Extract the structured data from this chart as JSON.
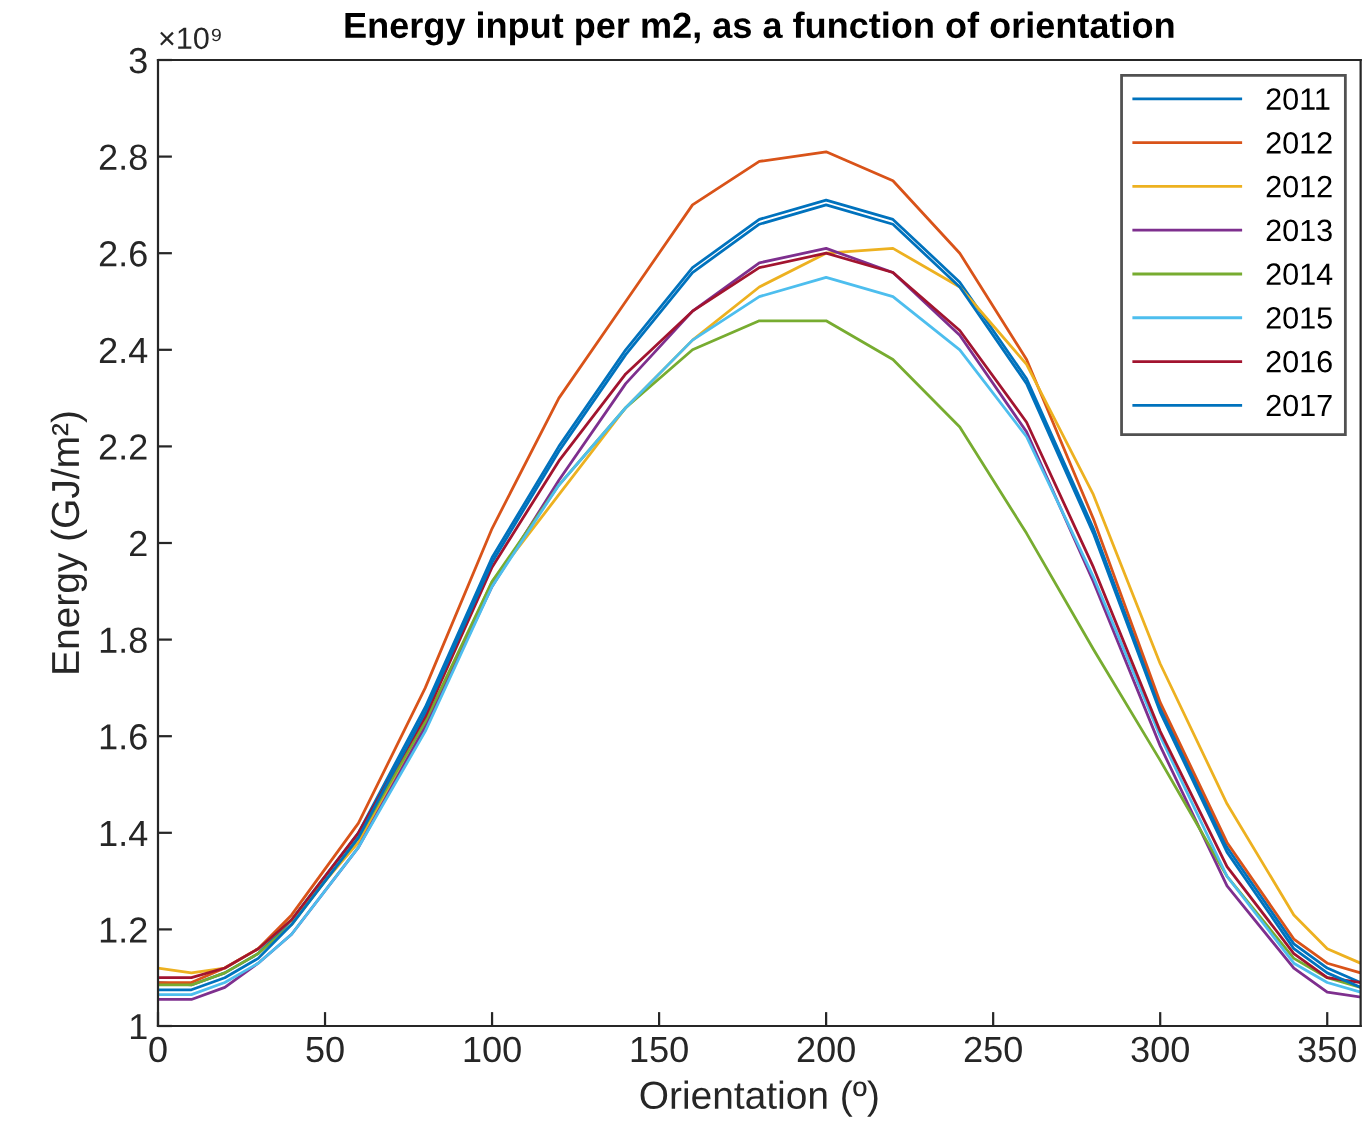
{
  "chart_data": {
    "type": "line",
    "title": "Energy input per m2, as a function of orientation",
    "xlabel": "Orientation (º)",
    "ylabel": "Energy (GJ/m²)",
    "annotations": [
      "×10⁹"
    ],
    "x": [
      0,
      10,
      20,
      30,
      40,
      60,
      80,
      100,
      120,
      140,
      160,
      180,
      200,
      220,
      240,
      260,
      280,
      300,
      320,
      340,
      350,
      360
    ],
    "xlim": [
      0,
      360
    ],
    "xticks": [
      0,
      50,
      100,
      150,
      200,
      250,
      300,
      350
    ],
    "ylim": [
      1,
      3
    ],
    "yticks": [
      1,
      1.2,
      1.4,
      1.6,
      1.8,
      2,
      2.2,
      2.4,
      2.6,
      2.8,
      3
    ],
    "grid": false,
    "legend": "top right",
    "marker": "none",
    "line_style": "solid",
    "series": [
      {
        "name": "2011",
        "color": "#0072bd",
        "values": [
          1.09,
          1.085,
          1.11,
          1.15,
          1.22,
          1.4,
          1.66,
          1.97,
          2.2,
          2.4,
          2.57,
          2.67,
          2.71,
          2.67,
          2.54,
          2.34,
          2.03,
          1.66,
          1.37,
          1.17,
          1.12,
          1.09
        ]
      },
      {
        "name": "2012",
        "color": "#d95319",
        "values": [
          1.09,
          1.09,
          1.12,
          1.16,
          1.23,
          1.42,
          1.7,
          2.03,
          2.3,
          2.5,
          2.7,
          2.79,
          2.81,
          2.75,
          2.6,
          2.38,
          2.05,
          1.67,
          1.38,
          1.18,
          1.13,
          1.11
        ]
      },
      {
        "name": "2012",
        "color": "#edb120",
        "values": [
          1.12,
          1.11,
          1.12,
          1.16,
          1.22,
          1.38,
          1.62,
          1.92,
          2.1,
          2.28,
          2.42,
          2.53,
          2.6,
          2.61,
          2.53,
          2.37,
          2.1,
          1.75,
          1.46,
          1.23,
          1.16,
          1.13
        ]
      },
      {
        "name": "2013",
        "color": "#7e2f8e",
        "values": [
          1.055,
          1.055,
          1.08,
          1.13,
          1.19,
          1.37,
          1.62,
          1.91,
          2.13,
          2.33,
          2.48,
          2.58,
          2.61,
          2.56,
          2.43,
          2.23,
          1.92,
          1.58,
          1.29,
          1.12,
          1.07,
          1.06
        ]
      },
      {
        "name": "2014",
        "color": "#77ac30",
        "values": [
          1.085,
          1.085,
          1.11,
          1.15,
          1.21,
          1.39,
          1.63,
          1.92,
          2.12,
          2.28,
          2.4,
          2.46,
          2.46,
          2.38,
          2.24,
          2.02,
          1.78,
          1.55,
          1.31,
          1.14,
          1.1,
          1.08
        ]
      },
      {
        "name": "2015",
        "color": "#4dbeee",
        "values": [
          1.065,
          1.065,
          1.09,
          1.13,
          1.19,
          1.37,
          1.61,
          1.91,
          2.12,
          2.28,
          2.42,
          2.51,
          2.55,
          2.51,
          2.4,
          2.22,
          1.93,
          1.6,
          1.31,
          1.13,
          1.09,
          1.07
        ]
      },
      {
        "name": "2016",
        "color": "#a2142f",
        "values": [
          1.1,
          1.1,
          1.12,
          1.16,
          1.22,
          1.4,
          1.64,
          1.95,
          2.17,
          2.35,
          2.48,
          2.57,
          2.6,
          2.56,
          2.44,
          2.25,
          1.95,
          1.61,
          1.33,
          1.15,
          1.1,
          1.09
        ]
      },
      {
        "name": "2017",
        "color": "#0072bd",
        "values": [
          1.075,
          1.075,
          1.1,
          1.14,
          1.21,
          1.39,
          1.65,
          1.96,
          2.19,
          2.39,
          2.56,
          2.66,
          2.7,
          2.66,
          2.53,
          2.33,
          2.02,
          1.65,
          1.36,
          1.16,
          1.11,
          1.08
        ]
      }
    ]
  }
}
